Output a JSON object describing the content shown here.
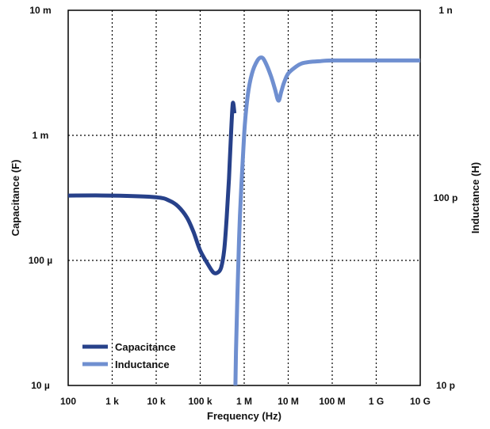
{
  "chart_data": {
    "type": "line",
    "xlabel": "Frequency (Hz)",
    "ylabel_left": "Capacitance (F)",
    "ylabel_right": "Inductance (H)",
    "x_scale": "log",
    "y_scale": "log",
    "xlim": [
      100,
      10000000000
    ],
    "ylim_left": [
      1e-05,
      0.01
    ],
    "ylim_right": [
      1e-11,
      1e-09
    ],
    "grid": true,
    "legend_position": "bottom-left",
    "x_ticks": [
      {
        "value": 100,
        "label": "100"
      },
      {
        "value": 1000,
        "label": "1 k"
      },
      {
        "value": 10000,
        "label": "10 k"
      },
      {
        "value": 100000,
        "label": "100 k"
      },
      {
        "value": 1000000,
        "label": "1 M"
      },
      {
        "value": 10000000,
        "label": "10 M"
      },
      {
        "value": 100000000,
        "label": "100 M"
      },
      {
        "value": 1000000000,
        "label": "1 G"
      },
      {
        "value": 10000000000,
        "label": "10 G"
      }
    ],
    "y_left_ticks": [
      {
        "value": 0.01,
        "label": "10 m"
      },
      {
        "value": 0.001,
        "label": "1 m"
      },
      {
        "value": 0.0001,
        "label": "100 µ"
      },
      {
        "value": 1e-05,
        "label": "10 µ"
      }
    ],
    "y_right_ticks": [
      {
        "value": 1e-09,
        "label": "1 n"
      },
      {
        "value": 1e-10,
        "label": "100 p"
      },
      {
        "value": 1e-11,
        "label": "10 p"
      }
    ],
    "series": [
      {
        "name": "Capacitance",
        "axis": "left",
        "color": "#27418a",
        "x": [
          100,
          1000,
          10000,
          20000,
          31600,
          50000,
          70000,
          100000,
          150000,
          200000,
          250000,
          300000,
          350000,
          400000,
          450000,
          500000,
          550000,
          600000
        ],
        "y": [
          0.00033,
          0.00033,
          0.00032,
          0.0003,
          0.00027,
          0.00022,
          0.00017,
          0.00012,
          9.3e-05,
          8e-05,
          8e-05,
          8.8e-05,
          0.00012,
          0.00022,
          0.00045,
          0.001,
          0.0018,
          0.0015
        ]
      },
      {
        "name": "Inductance",
        "axis": "right",
        "color": "#6f8fd0",
        "x": [
          630000,
          650000,
          700000,
          800000,
          1000000,
          1200000,
          1500000,
          2000000,
          2500000,
          3000000,
          4000000,
          5000000,
          6000000,
          7000000,
          8000000,
          10000000,
          15000000,
          20000000,
          30000000,
          50000000,
          100000000,
          1000000000,
          10000000000
        ],
        "y": [
          1e-11,
          1.5e-11,
          3e-11,
          8e-11,
          2.2e-10,
          3.5e-10,
          4.6e-10,
          5.4e-10,
          5.6e-10,
          5.3e-10,
          4.5e-10,
          3.8e-10,
          3.3e-10,
          3.7e-10,
          4.1e-10,
          4.6e-10,
          5e-10,
          5.2e-10,
          5.3e-10,
          5.35e-10,
          5.4e-10,
          5.4e-10,
          5.4e-10
        ]
      }
    ]
  }
}
